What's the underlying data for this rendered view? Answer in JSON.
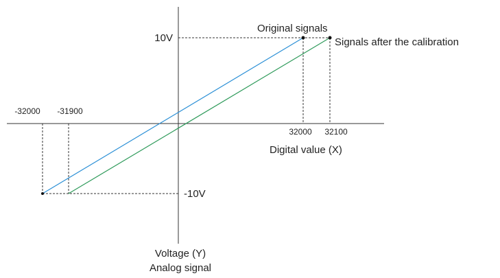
{
  "labels": {
    "v_pos": "10V",
    "v_neg": "-10V",
    "original": "Original signals",
    "calibrated": "Signals after the calibration",
    "x_neg_1": "-32000",
    "x_neg_2": "-31900",
    "x_pos_1": "32000",
    "x_pos_2": "32100",
    "x_axis": "Digital value (X)",
    "y_axis": "Voltage (Y)",
    "y_axis_sub": "Analog signal"
  }
}
